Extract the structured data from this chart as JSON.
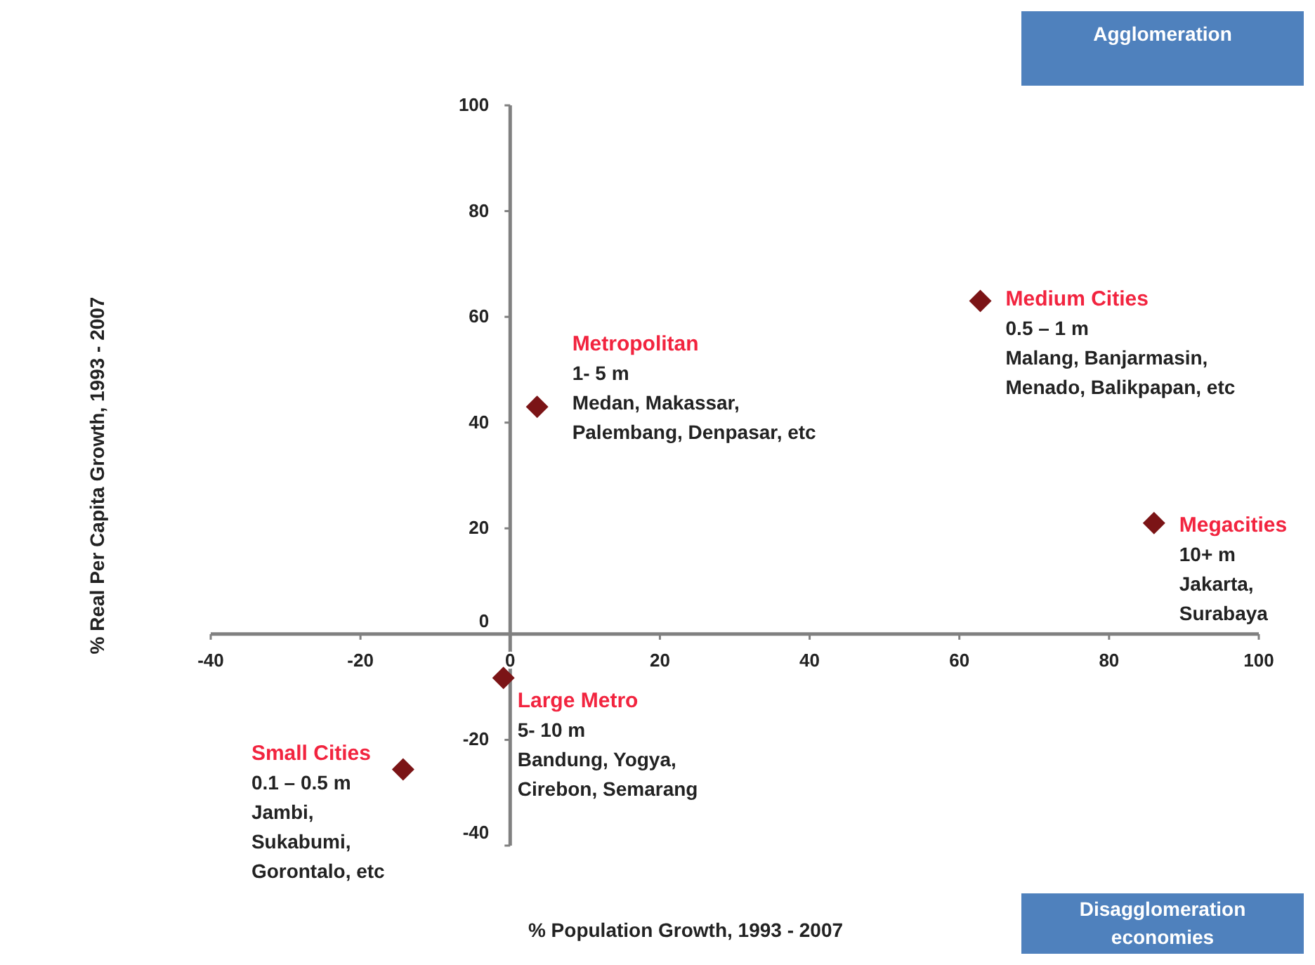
{
  "chart_data": {
    "type": "scatter",
    "xlabel": "% Population Growth, 1993 - 2007",
    "ylabel": "% Real Per Capita Growth,  1993 - 2007",
    "xlim": [
      -40,
      100
    ],
    "ylim": [
      -40,
      100
    ],
    "xticks": [
      -40,
      -20,
      0,
      20,
      40,
      60,
      80,
      100
    ],
    "yticks": [
      -40,
      -20,
      0,
      20,
      40,
      60,
      80,
      100
    ],
    "marker": "diamond",
    "series": [
      {
        "name": "Metropolitan",
        "color": "#7b1416",
        "x": [
          3.6
        ],
        "values": [
          43
        ]
      },
      {
        "name": "Medium Cities",
        "color": "#7b1416",
        "x": [
          62.8
        ],
        "values": [
          63
        ]
      },
      {
        "name": "Megacities",
        "color": "#7b1416",
        "x": [
          86
        ],
        "values": [
          21
        ]
      },
      {
        "name": "Large Metro",
        "color": "#7b1416",
        "x": [
          -0.9
        ],
        "values": [
          -8.3
        ]
      },
      {
        "name": "Small Cities",
        "color": "#7b1416",
        "x": [
          -14.3
        ],
        "values": [
          -25.6
        ]
      }
    ],
    "annotations": [
      {
        "text": "1- 5 m\nMedan, Makassar,\nPalembang, Denpasar, etc",
        "x": 3.6,
        "y": 43
      },
      {
        "text": "0.5 – 1 m\nMalang, Banjarmasin,\nMenado, Balikpapan, etc",
        "x": 62.8,
        "y": 63
      },
      {
        "text": "10+ m\nJakarta,\nSurabaya",
        "x": 86,
        "y": 21
      },
      {
        "text": "5- 10 m\nBandung, Yogya,\nCirebon, Semarang",
        "x": -0.9,
        "y": -8.3
      },
      {
        "text": "0.1 – 0.5 m\nJambi,\nSukabumi,\nGorontalo, etc",
        "x": -14.3,
        "y": -25.6
      },
      "Agglomeration",
      "Disagglomeration\neconomies"
    ]
  }
}
